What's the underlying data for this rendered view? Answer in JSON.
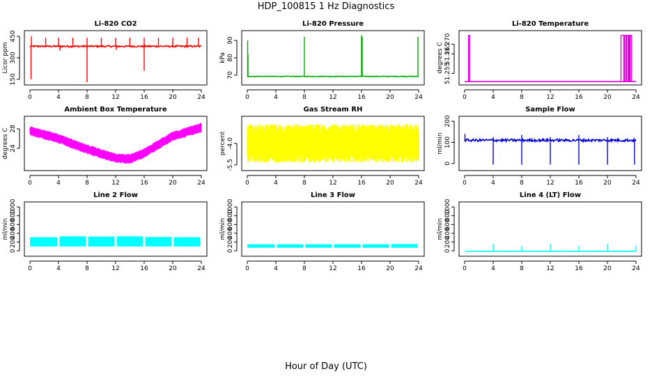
{
  "figure": {
    "title": "HDP_100815  1 Hz Diagnostics",
    "xlabel": "Hour of Day (UTC)"
  },
  "chart_data": [
    {
      "type": "line",
      "title": "Li-820 CO2",
      "ylabel": "Licor ppm",
      "color": "#ff0000",
      "xlim": [
        0,
        24
      ],
      "ylim": [
        130,
        470
      ],
      "xticks": [
        0,
        4,
        8,
        12,
        16,
        20,
        24
      ],
      "yticks": [
        150,
        300,
        450
      ],
      "ytick_labels": [
        "150",
        "300",
        "450"
      ],
      "base": 380,
      "noise": 6,
      "spikes": [
        [
          0.2,
          450
        ],
        [
          2.2,
          440
        ],
        [
          4,
          440
        ],
        [
          6,
          440
        ],
        [
          8,
          440
        ],
        [
          10,
          440
        ],
        [
          12,
          440
        ],
        [
          14,
          440
        ],
        [
          16,
          440
        ],
        [
          18,
          440
        ],
        [
          20,
          440
        ],
        [
          22,
          440
        ],
        [
          23.6,
          440
        ]
      ],
      "dips": [
        [
          0.15,
          150
        ],
        [
          8,
          130
        ],
        [
          16,
          210
        ],
        [
          4.2,
          350
        ],
        [
          12.1,
          355
        ]
      ]
    },
    {
      "type": "line",
      "title": "Li-820 Pressure",
      "ylabel": "kPa",
      "color": "#00aa00",
      "xlim": [
        0,
        24
      ],
      "ylim": [
        66,
        94
      ],
      "xticks": [
        0,
        4,
        8,
        12,
        16,
        20,
        24
      ],
      "yticks": [
        70,
        80,
        90
      ],
      "ytick_labels": [
        "70",
        "80",
        "90"
      ],
      "base": 69.3,
      "noise": 0.2,
      "spikes": [
        [
          0.05,
          90
        ],
        [
          0.1,
          82
        ],
        [
          8,
          92
        ],
        [
          16,
          93
        ],
        [
          16.1,
          92
        ],
        [
          23.9,
          92
        ]
      ],
      "dips": []
    },
    {
      "type": "line",
      "title": "Li-820 Temperature",
      "ylabel": "degrees C",
      "color": "#e000e0",
      "xlim": [
        0,
        24
      ],
      "ylim": [
        51.2505,
        51.2755
      ],
      "xticks": [
        0,
        4,
        8,
        12,
        16,
        20,
        24
      ],
      "yticks": [
        51.255,
        51.265,
        51.27
      ],
      "ytick_labels": [
        "51.255",
        "51.265",
        "51.270"
      ],
      "base": 51.2508,
      "noise": 0,
      "pulses": [
        [
          0.55,
          0.7
        ],
        [
          21.9,
          22.3
        ],
        [
          22.4,
          22.6
        ],
        [
          22.7,
          22.9
        ],
        [
          23.0,
          23.1
        ],
        [
          23.2,
          23.4
        ]
      ],
      "pulse_top": 51.2745
    },
    {
      "type": "band",
      "title": "Ambient Box Temperature",
      "ylabel": "degrees C",
      "color": "#ff00ff",
      "xlim": [
        0,
        24
      ],
      "ylim": [
        20,
        30
      ],
      "xticks": [
        0,
        4,
        8,
        12,
        16,
        20,
        24
      ],
      "yticks": [
        24,
        28
      ],
      "ytick_labels": [
        "24",
        "28"
      ],
      "curve": [
        [
          0,
          27.6
        ],
        [
          4,
          26.0
        ],
        [
          8,
          23.8
        ],
        [
          12,
          22.0
        ],
        [
          14,
          21.8
        ],
        [
          16,
          23.0
        ],
        [
          20,
          26.5
        ],
        [
          24,
          28.2
        ]
      ],
      "width": 2.0
    },
    {
      "type": "band",
      "title": "Gas Stream RH",
      "ylabel": "percent",
      "color": "#ffff00",
      "xlim": [
        0,
        24
      ],
      "ylim": [
        -5.7,
        -2.3
      ],
      "xticks": [
        0,
        4,
        8,
        12,
        16,
        20,
        24
      ],
      "yticks": [
        -5.5,
        -4.0
      ],
      "ytick_labels": [
        "-5.5",
        "-4.0"
      ],
      "curve": [
        [
          0,
          -4.0
        ],
        [
          24,
          -4.0
        ]
      ],
      "width": 2.7
    },
    {
      "type": "line",
      "title": "Sample Flow",
      "ylabel": "ml/min",
      "color": "#0000dd",
      "xlim": [
        0,
        24
      ],
      "ylim": [
        -20,
        210
      ],
      "xticks": [
        0,
        4,
        8,
        12,
        16,
        20,
        24
      ],
      "yticks": [
        0,
        100,
        200
      ],
      "ytick_labels": [
        "0",
        "100",
        "200"
      ],
      "base": 110,
      "noise": 6,
      "spikes": [
        [
          0.05,
          140
        ],
        [
          4,
          125
        ],
        [
          8,
          135
        ],
        [
          12,
          125
        ],
        [
          16,
          135
        ],
        [
          20,
          125
        ]
      ],
      "dips": [
        [
          4,
          -5
        ],
        [
          8,
          -5
        ],
        [
          12,
          -5
        ],
        [
          16,
          -5
        ],
        [
          20,
          -5
        ],
        [
          23.8,
          -5
        ]
      ]
    },
    {
      "type": "blocks",
      "title": "Line 2 Flow",
      "ylabel": "ml/min",
      "color": "#00ffff",
      "xlim": [
        0,
        24
      ],
      "ylim": [
        -60,
        1050
      ],
      "xticks": [
        0,
        4,
        8,
        12,
        16,
        20,
        24
      ],
      "yticks": [
        0,
        200,
        400,
        600,
        800,
        1000
      ],
      "ytick_labels": [
        "0",
        "200",
        "400",
        "600",
        "800",
        "1000"
      ],
      "segments": [
        [
          0,
          4,
          310
        ],
        [
          4,
          8,
          330
        ],
        [
          8,
          12,
          325
        ],
        [
          12,
          16,
          330
        ],
        [
          16,
          20,
          315
        ],
        [
          20,
          24,
          310
        ]
      ],
      "low": 100
    },
    {
      "type": "blocks",
      "title": "Line 3 Flow",
      "ylabel": "ml/min",
      "color": "#00ffff",
      "xlim": [
        0,
        24
      ],
      "ylim": [
        -60,
        1050
      ],
      "xticks": [
        0,
        4,
        8,
        12,
        16,
        20,
        24
      ],
      "yticks": [
        0,
        200,
        400,
        600,
        800,
        1000
      ],
      "ytick_labels": [
        "0",
        "200",
        "400",
        "600",
        "800",
        "1000"
      ],
      "segments": [
        [
          0,
          4,
          150
        ],
        [
          4,
          8,
          150
        ],
        [
          8,
          12,
          150
        ],
        [
          12,
          16,
          150
        ],
        [
          16,
          20,
          150
        ],
        [
          20,
          24,
          155
        ]
      ],
      "low": 70
    },
    {
      "type": "line",
      "title": "Line 4 (LT) Flow",
      "ylabel": "ml/min",
      "color": "#00ffff",
      "xlim": [
        0,
        24
      ],
      "ylim": [
        -60,
        1050
      ],
      "xticks": [
        0,
        4,
        8,
        12,
        16,
        20,
        24
      ],
      "yticks": [
        0,
        200,
        400,
        600,
        800,
        1000
      ],
      "ytick_labels": [
        "0",
        "200",
        "400",
        "600",
        "800",
        "1000"
      ],
      "base": -10,
      "noise": 4,
      "spikes": [
        [
          4,
          160
        ],
        [
          8,
          110
        ],
        [
          12,
          160
        ],
        [
          16,
          110
        ],
        [
          20,
          160
        ],
        [
          24,
          110
        ]
      ],
      "dips": []
    }
  ]
}
